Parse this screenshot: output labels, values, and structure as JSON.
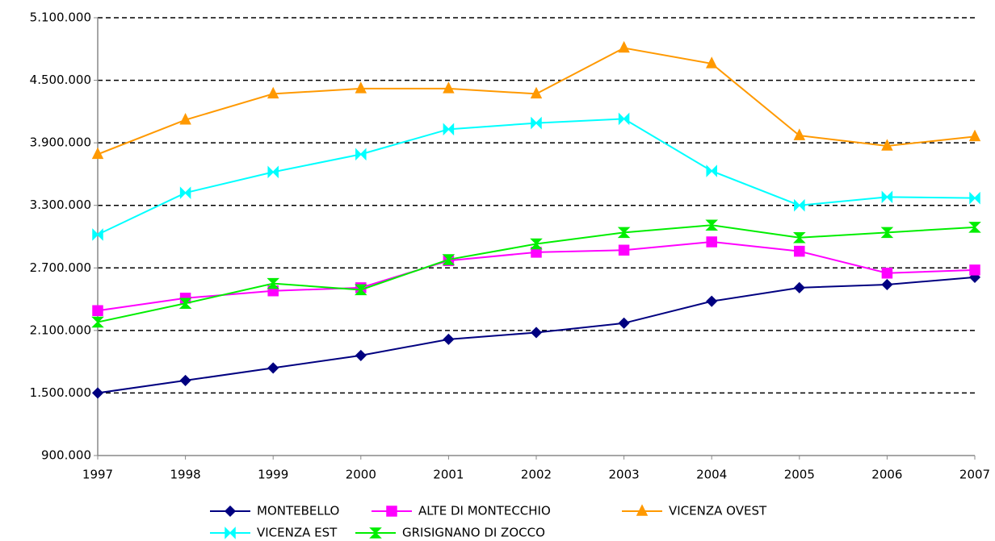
{
  "chart_data": {
    "type": "line",
    "categories": [
      "1997",
      "1998",
      "1999",
      "2000",
      "2001",
      "2002",
      "2003",
      "2004",
      "2005",
      "2006",
      "2007"
    ],
    "series": [
      {
        "name": "MONTEBELLO",
        "color": "#000080",
        "marker": "diamond",
        "values": [
          1500000,
          1620000,
          1740000,
          1860000,
          2015000,
          2080000,
          2170000,
          2380000,
          2510000,
          2540000,
          2610000
        ]
      },
      {
        "name": "ALTE DI MONTECCHIO",
        "color": "#ff00ff",
        "marker": "square",
        "values": [
          2290000,
          2410000,
          2480000,
          2510000,
          2770000,
          2850000,
          2870000,
          2950000,
          2860000,
          2650000,
          2680000
        ]
      },
      {
        "name": "VICENZA OVEST",
        "color": "#ff9900",
        "marker": "triangle",
        "values": [
          3790000,
          4120000,
          4370000,
          4420000,
          4420000,
          4370000,
          4810000,
          4660000,
          3970000,
          3870000,
          3960000
        ]
      },
      {
        "name": "VICENZA EST",
        "color": "#00ffff",
        "marker": "bowtie",
        "values": [
          3020000,
          3420000,
          3620000,
          3790000,
          4030000,
          4090000,
          4130000,
          3630000,
          3300000,
          3380000,
          3370000
        ]
      },
      {
        "name": "GRISIGNANO DI ZOCCO",
        "color": "#00ee00",
        "marker": "hourglass",
        "values": [
          2180000,
          2360000,
          2550000,
          2490000,
          2780000,
          2930000,
          3040000,
          3110000,
          2990000,
          3040000,
          3090000
        ]
      }
    ],
    "ylim": [
      900000,
      5100000
    ],
    "yticks": [
      {
        "value": 900000,
        "label": "900.000"
      },
      {
        "value": 1500000,
        "label": "1.500.000"
      },
      {
        "value": 2100000,
        "label": "2.100.000"
      },
      {
        "value": 2700000,
        "label": "2.700.000"
      },
      {
        "value": 3300000,
        "label": "3.300.000"
      },
      {
        "value": 3900000,
        "label": "3.900.000"
      },
      {
        "value": 4500000,
        "label": "4.500.000"
      },
      {
        "value": 5100000,
        "label": "5.100.000"
      }
    ],
    "grid": true,
    "legend": "bottom"
  }
}
